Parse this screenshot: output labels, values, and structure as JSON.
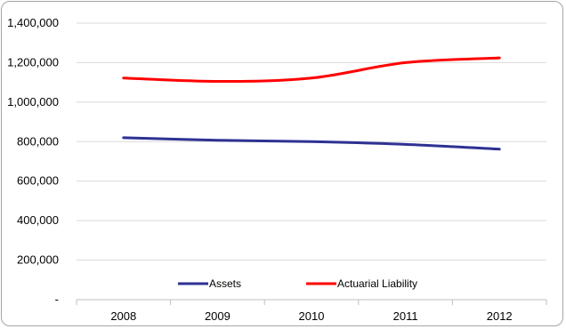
{
  "chart_data": {
    "type": "line",
    "categories": [
      "2008",
      "2009",
      "2010",
      "2011",
      "2012"
    ],
    "ylim": [
      0,
      1400000
    ],
    "yticks": [
      0,
      200000,
      400000,
      600000,
      800000,
      1000000,
      1200000,
      1400000
    ],
    "ytick_labels": [
      "-",
      "200,000",
      "400,000",
      "600,000",
      "800,000",
      "1,000,000",
      "1,200,000",
      "1,400,000"
    ],
    "grid": true,
    "legend_position": "bottom-inside",
    "series": [
      {
        "name": "Assets",
        "color": "#2e3192",
        "values": [
          820000,
          807000,
          800000,
          786000,
          762000
        ]
      },
      {
        "name": "Actuarial Liability",
        "color": "#ff0000",
        "values": [
          1122000,
          1105000,
          1122000,
          1200000,
          1224000
        ]
      }
    ]
  }
}
